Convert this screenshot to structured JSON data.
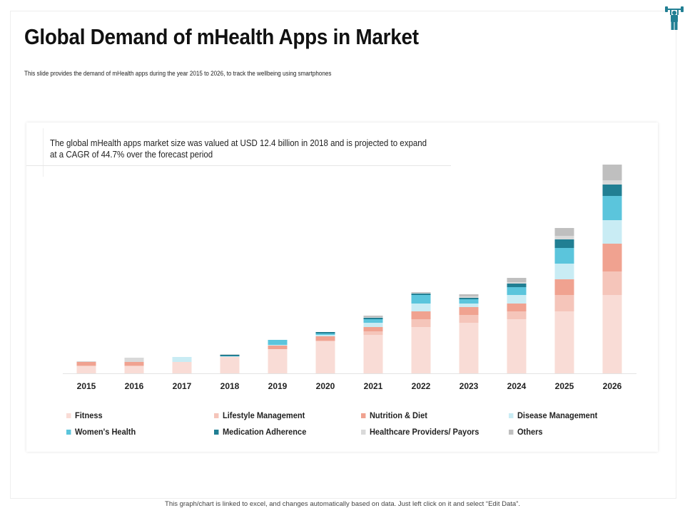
{
  "title": "Global Demand of mHealth Apps in Market",
  "subtitle": "This slide provides the demand of mHealth apps during the year 2015 to 2026, to track the wellbeing using smartphones",
  "note": "The global mHealth apps market size was valued at USD 12.4 billion in 2018 and is projected to expand at a CAGR of 44.7% over the forecast period",
  "footer": "This graph/chart is linked to excel, and changes automatically based on data. Just left click on it and select “Edit Data”.",
  "icon": "weightlifter-icon",
  "chart_data": {
    "type": "bar",
    "stacked": true,
    "title": "",
    "xlabel": "",
    "ylabel": "",
    "y_axis_shown": false,
    "grid": false,
    "legend_position": "bottom",
    "categories": [
      "2015",
      "2016",
      "2017",
      "2018",
      "2019",
      "2020",
      "2021",
      "2022",
      "2023",
      "2024",
      "2025",
      "2026"
    ],
    "series": [
      {
        "name": "Fitness",
        "color": "#f9dcd6",
        "values": [
          10,
          10,
          16,
          23,
          34,
          45,
          54,
          65,
          71,
          76,
          87,
          110
        ]
      },
      {
        "name": "Lifestyle Management",
        "color": "#f5c5ba",
        "values": [
          1,
          1,
          0,
          0,
          0,
          1,
          5,
          11,
          11,
          11,
          23,
          33
        ]
      },
      {
        "name": "Nutrition & Diet",
        "color": "#f0a290",
        "values": [
          5,
          5,
          0,
          0,
          5,
          6,
          6,
          11,
          11,
          11,
          22,
          39
        ]
      },
      {
        "name": "Disease Management",
        "color": "#c9ecf4",
        "values": [
          0,
          0,
          7,
          1,
          1,
          2,
          6,
          11,
          5,
          12,
          22,
          33
        ]
      },
      {
        "name": "Women's Health",
        "color": "#5bc5dc",
        "values": [
          0,
          0,
          0,
          0,
          7,
          2,
          5,
          12,
          6,
          11,
          22,
          34
        ]
      },
      {
        "name": "Medication Adherence",
        "color": "#217f93",
        "values": [
          0,
          0,
          0,
          2,
          0,
          2,
          2,
          2,
          2,
          5,
          12,
          16
        ]
      },
      {
        "name": "Healthcare Providers/ Payors",
        "color": "#d9d9d9",
        "values": [
          1,
          6,
          0,
          1,
          0,
          0,
          1,
          1,
          2,
          2,
          5,
          6
        ]
      },
      {
        "name": "Others",
        "color": "#bfbfbf",
        "values": [
          0,
          0,
          0,
          0,
          0,
          0,
          2,
          1,
          3,
          6,
          11,
          22
        ]
      }
    ]
  }
}
